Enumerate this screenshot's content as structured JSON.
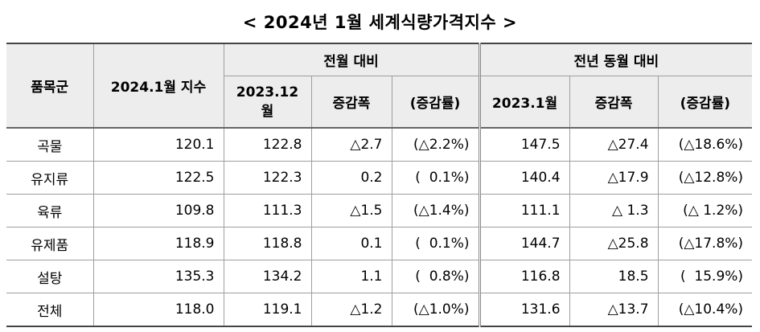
{
  "title": "< 2024년 1월 세계식량가격지수 >",
  "header": {
    "item": "품목군",
    "index": "2024.1월 지수",
    "mom_group": "전월 대비",
    "yoy_group": "전년 동월 대비",
    "prev_month": "2023.12\n월",
    "mom_change": "증감폭",
    "mom_rate": "(증감률)",
    "prev_year": "2023.1월",
    "yoy_change": "증감폭",
    "yoy_rate": "(증감률)"
  },
  "rows": [
    {
      "name": "곡물",
      "index": "120.1",
      "prev_month": "122.8",
      "mom_change": "△2.7",
      "mom_rate": "(△2.2%)",
      "prev_year": "147.5",
      "yoy_change": "△27.4",
      "yoy_rate": "(△18.6%)"
    },
    {
      "name": "유지류",
      "index": "122.5",
      "prev_month": "122.3",
      "mom_change": "0.2",
      "mom_rate": "(  0.1%)",
      "prev_year": "140.4",
      "yoy_change": "△17.9",
      "yoy_rate": "(△12.8%)"
    },
    {
      "name": "육류",
      "index": "109.8",
      "prev_month": "111.3",
      "mom_change": "△1.5",
      "mom_rate": "(△1.4%)",
      "prev_year": "111.1",
      "yoy_change": "△ 1.3",
      "yoy_rate": "(△ 1.2%)"
    },
    {
      "name": "유제품",
      "index": "118.9",
      "prev_month": "118.8",
      "mom_change": "0.1",
      "mom_rate": "(  0.1%)",
      "prev_year": "144.7",
      "yoy_change": "△25.8",
      "yoy_rate": "(△17.8%)"
    },
    {
      "name": "설탕",
      "index": "135.3",
      "prev_month": "134.2",
      "mom_change": "1.1",
      "mom_rate": "(  0.8%)",
      "prev_year": "116.8",
      "yoy_change": "18.5",
      "yoy_rate": "(  15.9%)"
    },
    {
      "name": "전체",
      "index": "118.0",
      "prev_month": "119.1",
      "mom_change": "△1.2",
      "mom_rate": "(△1.0%)",
      "prev_year": "131.6",
      "yoy_change": "△13.7",
      "yoy_rate": "(△10.4%)"
    }
  ]
}
